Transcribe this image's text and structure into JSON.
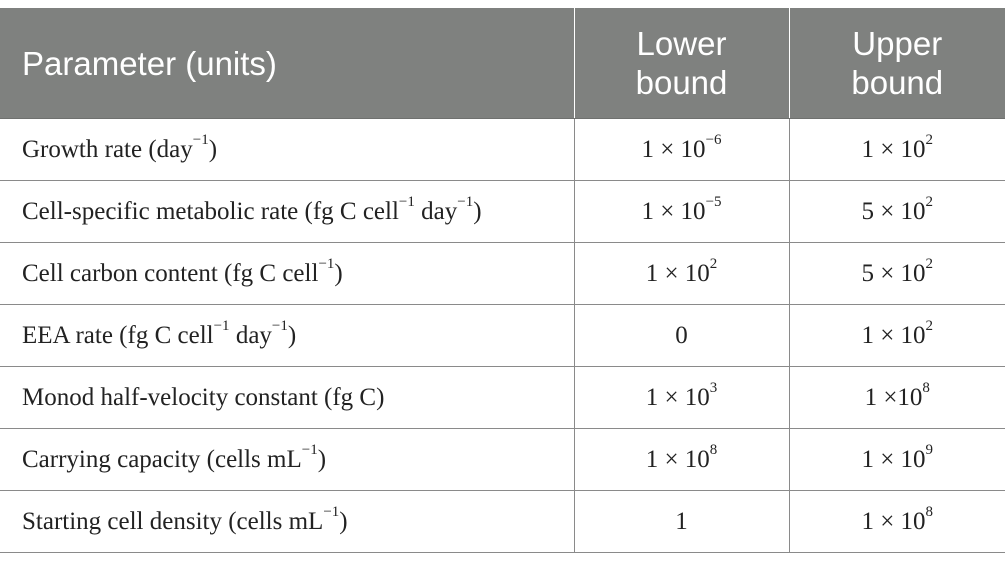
{
  "header": {
    "parameter": "Parameter (units)",
    "lower": [
      "Lower",
      "bound"
    ],
    "upper": [
      "Upper",
      "bound"
    ]
  },
  "rows": [
    {
      "parameter": [
        {
          "t": "Growth rate (day"
        },
        {
          "sup": "−1"
        },
        {
          "t": ")"
        }
      ],
      "lower": [
        {
          "t": "1 × 10"
        },
        {
          "sup": "−6"
        }
      ],
      "upper": [
        {
          "t": "1 × 10"
        },
        {
          "sup": "2"
        }
      ]
    },
    {
      "parameter": [
        {
          "t": "Cell-specific metabolic rate (fg C cell"
        },
        {
          "sup": "−1"
        },
        {
          "t": " day"
        },
        {
          "sup": "−1"
        },
        {
          "t": ")"
        }
      ],
      "lower": [
        {
          "t": "1 × 10"
        },
        {
          "sup": "−5"
        }
      ],
      "upper": [
        {
          "t": "5 × 10"
        },
        {
          "sup": "2"
        }
      ]
    },
    {
      "parameter": [
        {
          "t": "Cell carbon content (fg C cell"
        },
        {
          "sup": "−1"
        },
        {
          "t": ")"
        }
      ],
      "lower": [
        {
          "t": "1 × 10"
        },
        {
          "sup": "2"
        }
      ],
      "upper": [
        {
          "t": "5 × 10"
        },
        {
          "sup": "2"
        }
      ]
    },
    {
      "parameter": [
        {
          "t": "EEA rate (fg C cell"
        },
        {
          "sup": "−1"
        },
        {
          "t": " day"
        },
        {
          "sup": "−1"
        },
        {
          "t": ")"
        }
      ],
      "lower": [
        {
          "t": "0"
        }
      ],
      "upper": [
        {
          "t": "1 × 10"
        },
        {
          "sup": "2"
        }
      ]
    },
    {
      "parameter": [
        {
          "t": "Monod half-velocity constant (fg C)"
        }
      ],
      "lower": [
        {
          "t": "1 × 10"
        },
        {
          "sup": "3"
        }
      ],
      "upper": [
        {
          "t": "1 ×10"
        },
        {
          "sup": "8"
        }
      ]
    },
    {
      "parameter": [
        {
          "t": "Carrying capacity (cells mL"
        },
        {
          "sup": "−1"
        },
        {
          "t": ")"
        }
      ],
      "lower": [
        {
          "t": "1 × 10"
        },
        {
          "sup": "8"
        }
      ],
      "upper": [
        {
          "t": "1 × 10"
        },
        {
          "sup": "9"
        }
      ]
    },
    {
      "parameter": [
        {
          "t": "Starting cell density (cells mL"
        },
        {
          "sup": "−1"
        },
        {
          "t": ")"
        }
      ],
      "lower": [
        {
          "t": "1"
        }
      ],
      "upper": [
        {
          "t": "1 × 10"
        },
        {
          "sup": "8"
        }
      ]
    }
  ]
}
